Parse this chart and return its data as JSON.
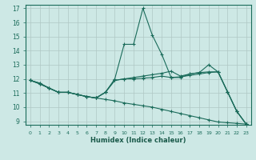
{
  "xlabel": "Humidex (Indice chaleur)",
  "background_color": "#cde8e5",
  "grid_color": "#b0c8c4",
  "line_color": "#1a6b5a",
  "xlim": [
    -0.5,
    23.5
  ],
  "ylim": [
    8.75,
    17.25
  ],
  "yticks": [
    9,
    10,
    11,
    12,
    13,
    14,
    15,
    16,
    17
  ],
  "xticks": [
    0,
    1,
    2,
    3,
    4,
    5,
    6,
    7,
    8,
    9,
    10,
    11,
    12,
    13,
    14,
    15,
    16,
    17,
    18,
    19,
    20,
    21,
    22,
    23
  ],
  "xtick_labels": [
    "0",
    "1",
    "2",
    "3",
    "4",
    "5",
    "6",
    "7",
    "8",
    "9",
    "10",
    "11",
    "12",
    "13",
    "14",
    "15",
    "16",
    "17",
    "18",
    "19",
    "20",
    "21",
    "22",
    "23"
  ],
  "series": [
    [
      11.9,
      11.7,
      11.35,
      11.05,
      11.05,
      10.9,
      10.75,
      10.65,
      10.55,
      10.45,
      10.3,
      10.2,
      10.1,
      10.0,
      9.85,
      9.7,
      9.55,
      9.4,
      9.25,
      9.1,
      8.95,
      8.9,
      8.85,
      8.8
    ],
    [
      11.9,
      11.7,
      11.35,
      11.05,
      11.05,
      10.9,
      10.75,
      10.65,
      11.05,
      11.9,
      12.0,
      12.0,
      12.05,
      12.1,
      12.2,
      12.1,
      12.15,
      12.25,
      12.35,
      12.45,
      12.5,
      11.1,
      9.7,
      8.8
    ],
    [
      11.9,
      11.65,
      11.35,
      11.05,
      11.05,
      10.9,
      10.75,
      10.65,
      11.05,
      11.9,
      12.0,
      12.1,
      12.2,
      12.3,
      12.4,
      12.55,
      12.2,
      12.35,
      12.45,
      12.5,
      12.5,
      11.1,
      9.7,
      8.8
    ],
    [
      11.9,
      11.65,
      11.35,
      11.05,
      11.05,
      10.9,
      10.75,
      10.65,
      11.05,
      12.0,
      14.45,
      14.45,
      17.0,
      15.1,
      13.75,
      12.1,
      12.1,
      12.35,
      12.45,
      13.0,
      12.5,
      11.1,
      9.7,
      8.8
    ]
  ]
}
